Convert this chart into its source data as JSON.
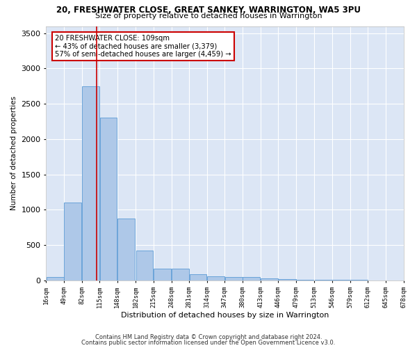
{
  "title1": "20, FRESHWATER CLOSE, GREAT SANKEY, WARRINGTON, WA5 3PU",
  "title2": "Size of property relative to detached houses in Warrington",
  "xlabel": "Distribution of detached houses by size in Warrington",
  "ylabel": "Number of detached properties",
  "footer1": "Contains HM Land Registry data © Crown copyright and database right 2024.",
  "footer2": "Contains public sector information licensed under the Open Government Licence v3.0.",
  "annotation_line1": "20 FRESHWATER CLOSE: 109sqm",
  "annotation_line2": "← 43% of detached houses are smaller (3,379)",
  "annotation_line3": "57% of semi-detached houses are larger (4,459) →",
  "property_size": 109,
  "bar_left_edges": [
    16,
    49,
    82,
    115,
    148,
    182,
    215,
    248,
    281,
    314,
    347,
    380,
    413,
    446,
    479,
    513,
    546,
    579,
    612,
    645
  ],
  "bar_widths": [
    33,
    33,
    33,
    33,
    33,
    33,
    33,
    33,
    33,
    33,
    33,
    33,
    33,
    33,
    33,
    33,
    33,
    33,
    33,
    33
  ],
  "bar_heights": [
    50,
    1100,
    2750,
    2300,
    880,
    420,
    170,
    170,
    90,
    60,
    50,
    50,
    30,
    20,
    10,
    10,
    5,
    5,
    3,
    2
  ],
  "bar_color": "#aec8e8",
  "bar_edgecolor": "#5b9bd5",
  "redline_color": "#cc0000",
  "annotation_box_edgecolor": "#cc0000",
  "annotation_box_facecolor": "#ffffff",
  "fig_facecolor": "#ffffff",
  "background_color": "#dce6f5",
  "grid_color": "#ffffff",
  "ylim": [
    0,
    3600
  ],
  "xlim": [
    16,
    678
  ],
  "yticks": [
    0,
    500,
    1000,
    1500,
    2000,
    2500,
    3000,
    3500
  ],
  "tick_labels": [
    "16sqm",
    "49sqm",
    "82sqm",
    "115sqm",
    "148sqm",
    "182sqm",
    "215sqm",
    "248sqm",
    "281sqm",
    "314sqm",
    "347sqm",
    "380sqm",
    "413sqm",
    "446sqm",
    "479sqm",
    "513sqm",
    "546sqm",
    "579sqm",
    "612sqm",
    "645sqm",
    "678sqm"
  ],
  "tick_positions": [
    16,
    49,
    82,
    115,
    148,
    182,
    215,
    248,
    281,
    314,
    347,
    380,
    413,
    446,
    479,
    513,
    546,
    579,
    612,
    645,
    678
  ]
}
